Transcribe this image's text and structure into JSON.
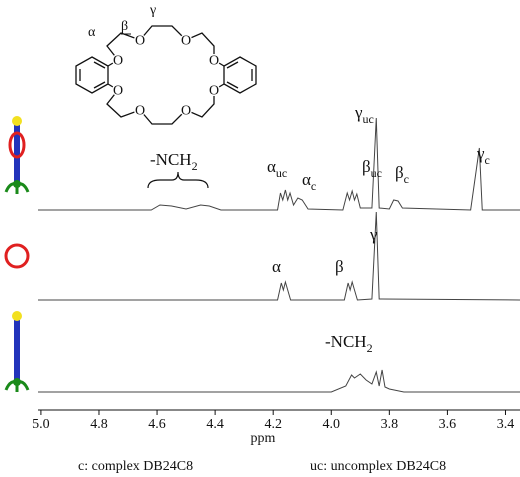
{
  "chart_data": {
    "type": "line",
    "x_label": "ppm",
    "color": "#444444",
    "xlim": [
      5.01,
      3.35
    ],
    "xticks": [
      {
        "value": 5.0,
        "label": "5.0"
      },
      4.8,
      4.6,
      4.4,
      4.2,
      {
        "value": 4.0,
        "label": "4.0"
      },
      3.8,
      3.6,
      3.4
    ],
    "series": [
      {
        "x": [
          5.01,
          4.62,
          4.59,
          4.55,
          4.5,
          4.45,
          4.42,
          4.38,
          4.185,
          4.175,
          4.167,
          4.158,
          4.15,
          4.142,
          4.13,
          4.115,
          4.1,
          4.08,
          3.96,
          3.945,
          3.937,
          3.928,
          3.92,
          3.912,
          3.9,
          3.86,
          3.845,
          3.835,
          3.8,
          3.785,
          3.77,
          3.755,
          3.52,
          3.49,
          3.48,
          3.35
        ],
        "values": [
          0,
          0,
          0.05,
          0.04,
          0.01,
          0.05,
          0.04,
          0,
          0,
          0.17,
          0.1,
          0.2,
          0.1,
          0.17,
          0.05,
          0.12,
          0.1,
          0.01,
          0,
          0.17,
          0.1,
          0.19,
          0.1,
          0.16,
          0.02,
          0.02,
          0.92,
          0.02,
          0.01,
          0.1,
          0.09,
          0.02,
          0,
          0.62,
          0,
          0
        ],
        "annotations": [
          {
            "text": "-NCH",
            "sub": "2"
          },
          {
            "text": "α",
            "sub": "uc"
          },
          {
            "text": "α",
            "sub": "c"
          },
          {
            "text": "β",
            "sub": "uc"
          },
          {
            "text": "β",
            "sub": "c"
          },
          {
            "text": "γ",
            "sub": "uc"
          },
          {
            "text": "γ",
            "sub": "c"
          }
        ]
      },
      {
        "x": [
          5.01,
          4.185,
          4.172,
          4.165,
          4.158,
          4.15,
          4.14,
          3.955,
          3.942,
          3.935,
          3.928,
          3.92,
          3.91,
          3.86,
          3.845,
          3.835,
          3.35
        ],
        "values": [
          0,
          0,
          0.17,
          0.1,
          0.18,
          0.1,
          0,
          0,
          0.17,
          0.1,
          0.18,
          0.1,
          0,
          0.01,
          0.88,
          0.01,
          0
        ],
        "annotations": [
          {
            "text": "α"
          },
          {
            "text": "β"
          },
          {
            "text": "γ"
          }
        ]
      },
      {
        "x": [
          5.01,
          4.0,
          3.95,
          3.93,
          3.92,
          3.9,
          3.88,
          3.86,
          3.845,
          3.835,
          3.825,
          3.815,
          3.8,
          3.75,
          3.35
        ],
        "values": [
          0,
          0,
          0.06,
          0.17,
          0.14,
          0.18,
          0.12,
          0.08,
          0.2,
          0.06,
          0.22,
          0.05,
          0.03,
          0,
          0
        ],
        "annotations": [
          {
            "text": "-NCH",
            "sub": "2"
          }
        ]
      }
    ]
  },
  "structure": {
    "labels": [
      "α",
      "β",
      "γ"
    ],
    "atoms": [
      "O",
      "O",
      "O",
      "O",
      "O",
      "O",
      "O",
      "O"
    ]
  },
  "captions": [
    "c: complex DB24C8",
    "uc: uncomplex DB24C8"
  ]
}
